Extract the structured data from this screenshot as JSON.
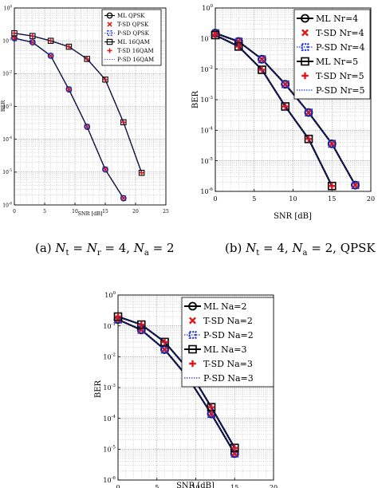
{
  "captions": {
    "a": "(a)  N_t = N_r = 4, N_a = 2",
    "b": "(b)  N_t = 4, N_a = 2,  QPSK"
  },
  "chart_data": [
    {
      "id": "a",
      "type": "line",
      "xlabel": "SNR [dB]",
      "ylabel": "BER",
      "xlim": [
        0,
        25
      ],
      "ylim_log10": [
        -6,
        0
      ],
      "x_ticks": [
        "0",
        "5",
        "10",
        "15",
        "20",
        "25"
      ],
      "y_ticks": [
        "10^0",
        "10^-1",
        "10^-2",
        "10^-3",
        "10^-4",
        "10^-5",
        "10^-6"
      ],
      "grid": true,
      "legend_position": "top-right",
      "series": [
        {
          "name": "ML   QPSK",
          "style": "solid-circle",
          "x": [
            0,
            3,
            6,
            9,
            12,
            15,
            18
          ],
          "y": [
            0.12,
            0.09,
            0.035,
            0.0033,
            0.00024,
            1.2e-05,
            1.6e-06
          ]
        },
        {
          "name": "T-SD QPSK",
          "style": "marker-x",
          "x": [
            0,
            3,
            6,
            9,
            12,
            15,
            18
          ],
          "y": [
            0.12,
            0.09,
            0.035,
            0.0033,
            0.00024,
            1.2e-05,
            1.6e-06
          ]
        },
        {
          "name": "P-SD QPSK",
          "style": "dotted-square",
          "x": [
            0,
            3,
            6,
            9,
            12,
            15,
            18
          ],
          "y": [
            0.12,
            0.09,
            0.035,
            0.0033,
            0.00024,
            1.2e-05,
            1.6e-06
          ]
        },
        {
          "name": "ML   16QAM",
          "style": "solid-square",
          "x": [
            0,
            3,
            6,
            9,
            12,
            15,
            18,
            21
          ],
          "y": [
            0.17,
            0.14,
            0.1,
            0.066,
            0.028,
            0.0066,
            0.00033,
            9.5e-06
          ]
        },
        {
          "name": "T-SD 16QAM",
          "style": "marker-plus",
          "x": [
            0,
            3,
            6,
            9,
            12,
            15,
            18,
            21
          ],
          "y": [
            0.17,
            0.14,
            0.1,
            0.066,
            0.028,
            0.0066,
            0.00033,
            9.5e-06
          ]
        },
        {
          "name": "P-SD 16QAM",
          "style": "dotted",
          "x": [
            0,
            3,
            6,
            9,
            12,
            15,
            18,
            21
          ],
          "y": [
            0.17,
            0.14,
            0.1,
            0.066,
            0.028,
            0.0066,
            0.00033,
            9.5e-06
          ]
        }
      ]
    },
    {
      "id": "b",
      "type": "line",
      "xlabel": "SNR [dB]",
      "ylabel": "BER",
      "xlim": [
        0,
        20
      ],
      "ylim_log10": [
        -6,
        0
      ],
      "x_ticks": [
        "0",
        "5",
        "10",
        "15",
        "20"
      ],
      "y_ticks": [
        "10^0",
        "10^-1",
        "10^-2",
        "10^-3",
        "10^-4",
        "10^-5",
        "10^-6"
      ],
      "grid": true,
      "legend_position": "top-right",
      "series": [
        {
          "name": "ML   Nr=4",
          "style": "solid-circle",
          "x": [
            0,
            3,
            6,
            9,
            12,
            15,
            18
          ],
          "y": [
            0.15,
            0.08,
            0.021,
            0.0032,
            0.00038,
            3.6e-05,
            1.6e-06
          ]
        },
        {
          "name": "T-SD Nr=4",
          "style": "marker-x",
          "x": [
            0,
            3,
            6,
            9,
            12,
            15,
            18
          ],
          "y": [
            0.15,
            0.08,
            0.021,
            0.0032,
            0.00038,
            3.6e-05,
            1.6e-06
          ]
        },
        {
          "name": "P-SD Nr=4",
          "style": "dotted-square",
          "x": [
            0,
            3,
            6,
            9,
            12,
            15,
            18
          ],
          "y": [
            0.15,
            0.08,
            0.021,
            0.0032,
            0.00038,
            3.6e-05,
            1.6e-06
          ]
        },
        {
          "name": "ML   Nr=5",
          "style": "solid-square",
          "x": [
            0,
            3,
            6,
            9,
            12,
            15
          ],
          "y": [
            0.13,
            0.055,
            0.0095,
            0.0006,
            5.2e-05,
            1.5e-06
          ]
        },
        {
          "name": "T-SD Nr=5",
          "style": "marker-plus",
          "x": [
            0,
            3,
            6,
            9,
            12,
            15
          ],
          "y": [
            0.13,
            0.055,
            0.0095,
            0.0006,
            5.2e-05,
            1.5e-06
          ]
        },
        {
          "name": "P-SD Nr=5",
          "style": "dotted",
          "x": [
            0,
            3,
            6,
            9,
            12,
            15
          ],
          "y": [
            0.13,
            0.055,
            0.0095,
            0.0006,
            5.2e-05,
            1.5e-06
          ]
        }
      ]
    },
    {
      "id": "c",
      "type": "line",
      "xlabel": "SNR [dB]",
      "ylabel": "BER",
      "xlim": [
        0,
        20
      ],
      "ylim_log10": [
        -6,
        0
      ],
      "x_ticks": [
        "0",
        "5",
        "10",
        "15",
        "20"
      ],
      "y_ticks": [
        "10^0",
        "10^-1",
        "10^-2",
        "10^-3",
        "10^-4",
        "10^-5",
        "10^-6"
      ],
      "grid": true,
      "legend_position": "top-right",
      "series": [
        {
          "name": "ML   Na=2",
          "style": "solid-circle",
          "x": [
            0,
            3,
            6,
            9,
            12,
            15
          ],
          "y": [
            0.16,
            0.074,
            0.017,
            0.0021,
            0.00014,
            7.2e-06
          ]
        },
        {
          "name": "T-SD Na=2",
          "style": "marker-x",
          "x": [
            0,
            3,
            6,
            9,
            12,
            15
          ],
          "y": [
            0.16,
            0.074,
            0.017,
            0.0021,
            0.00014,
            7.2e-06
          ]
        },
        {
          "name": "P-SD Na=2",
          "style": "dotted-square",
          "x": [
            0,
            3,
            6,
            9,
            12,
            15
          ],
          "y": [
            0.16,
            0.074,
            0.017,
            0.0021,
            0.00014,
            7.2e-06
          ]
        },
        {
          "name": "ML   Na=3",
          "style": "solid-square",
          "x": [
            0,
            3,
            6,
            9,
            12,
            15
          ],
          "y": [
            0.2,
            0.11,
            0.03,
            0.004,
            0.00023,
            1.1e-05
          ]
        },
        {
          "name": "T-SD Na=3",
          "style": "marker-plus",
          "x": [
            0,
            3,
            6,
            9,
            12,
            15
          ],
          "y": [
            0.2,
            0.11,
            0.03,
            0.004,
            0.00023,
            1.1e-05
          ]
        },
        {
          "name": "P-SD Na=3",
          "style": "dotted",
          "x": [
            0,
            3,
            6,
            9,
            12,
            15
          ],
          "y": [
            0.2,
            0.11,
            0.03,
            0.004,
            0.00023,
            1.1e-05
          ]
        }
      ]
    }
  ]
}
